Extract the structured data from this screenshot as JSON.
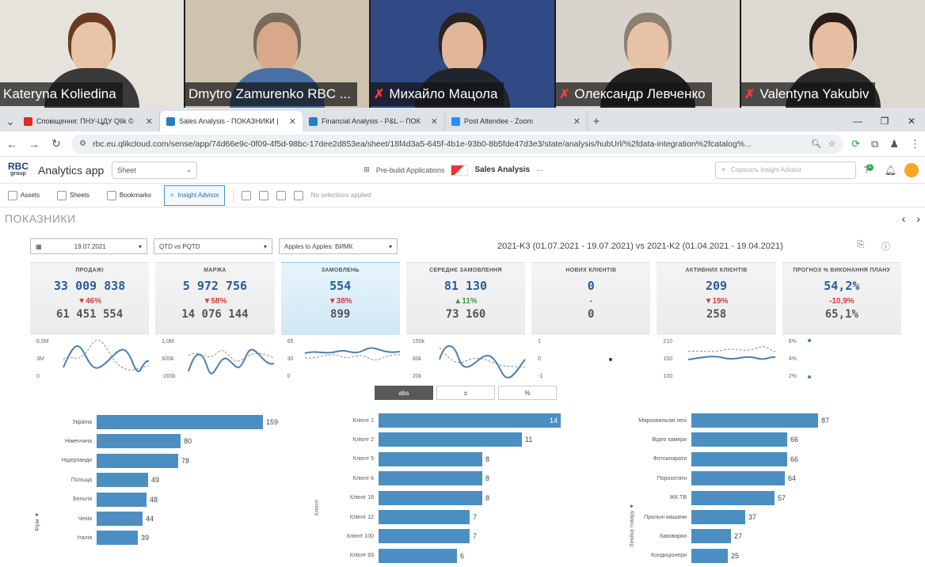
{
  "video": {
    "participants": [
      {
        "name": "Kateryna Koliedina",
        "muted": false,
        "bg": "#e6e2dc",
        "skin": "#e8c4a8",
        "hair": "#6b3a22",
        "shirt": "#3a3a3a"
      },
      {
        "name": "Dmytro Zamurenko RBC ...",
        "muted": false,
        "bg": "#cfc3b0",
        "skin": "#d9a88a",
        "hair": "#7a6a5a",
        "shirt": "#4a6fa5"
      },
      {
        "name": "Михайло Мацола",
        "muted": true,
        "bg": "#2f4a84",
        "skin": "#e2b699",
        "hair": "#2a2420",
        "shirt": "#1e2430"
      },
      {
        "name": "Олександр Левченко",
        "muted": true,
        "bg": "#d8d3cc",
        "skin": "#e8c2a6",
        "hair": "#8c8070",
        "shirt": "#222"
      },
      {
        "name": "Valentyna Yakubiv",
        "muted": true,
        "bg": "#ddd8d0",
        "skin": "#e6bfa3",
        "hair": "#2a1e18",
        "shirt": "#2a2a2a"
      }
    ]
  },
  "browser": {
    "tabs": [
      {
        "title": "Сповіщення: ПНУ-ЦДУ Qlik ©",
        "icon_color": "#d93025",
        "active": false
      },
      {
        "title": "Sales Analysis - ПОКАЗНИКИ |",
        "icon_color": "#2a7fbf",
        "active": true
      },
      {
        "title": "Financial Analysis - P&L – ПОК",
        "icon_color": "#2a7fbf",
        "active": false
      },
      {
        "title": "Post Attendee - Zoom",
        "icon_color": "#2d8cff",
        "active": false
      }
    ],
    "new_tab": "+",
    "url": "rbc.eu.qlikcloud.com/sense/app/74d66e9c-0f09-4f5d-98bc-17dee2d853ea/sheet/18f4d3a5-645f-4b1e-93b0-8b5fde47d3e3/state/analysis/hubUrl/%2fdata-integration%2fcatalog%..."
  },
  "qlik": {
    "logo_top": "RBC",
    "logo_bottom": "group",
    "app_name": "Analytics app",
    "sheet_select": "Sheet",
    "prebuild": "Pre-build Applications",
    "sales": "Sales Analysis",
    "more": "···",
    "insight_placeholder": "Спросить Insight Advisor",
    "notif_count": "1",
    "toolbar": {
      "assets": "Assets",
      "sheets": "Sheets",
      "bookmarks": "Bookmarks",
      "insight": "Insight Advisor",
      "no_selections": "No selections applied"
    },
    "sheet_title": "ПОКАЗНИКИ"
  },
  "filters": {
    "date": "19.07.2021",
    "period": "QTD vs PQTD",
    "apples": "Apples to Apples: ВИМК",
    "period_text": "2021-K3 (01.07.2021 - 19.07.2021) vs 2021-K2 (01.04.2021 - 19.04.2021)"
  },
  "kpis": [
    {
      "label": "ПРОДАЖІ",
      "value": "33 009 838",
      "change": "▼46%",
      "dir": "down",
      "prev": "61 451 554"
    },
    {
      "label": "МАРЖА",
      "value": "5 972 756",
      "change": "▼58%",
      "dir": "down",
      "prev": "14 076 144"
    },
    {
      "label": "ЗАМОВЛЕНЬ",
      "value": "554",
      "change": "▼38%",
      "dir": "down",
      "prev": "899"
    },
    {
      "label": "СЕРЕДНЄ ЗАМОВЛЕННЯ",
      "value": "81 130",
      "change": "▲11%",
      "dir": "up",
      "prev": "73 160"
    },
    {
      "label": "НОВИХ КЛІЄНТІВ",
      "value": "0",
      "change": "-",
      "dir": "neutral",
      "prev": "0"
    },
    {
      "label": "АКТИВНИХ КЛІЄНТІВ",
      "value": "209",
      "change": "▼19%",
      "dir": "down",
      "prev": "258"
    },
    {
      "label": "ПРОГНОЗ % ВИКОНАННЯ ПЛАНУ",
      "value": "54,2%",
      "change": "-10,9%",
      "dir": "down",
      "prev": "65,1%"
    }
  ],
  "sparks": [
    {
      "ticks": [
        "6,5M",
        "3M",
        "0"
      ]
    },
    {
      "ticks": [
        "1,0M",
        "600k",
        "-200k"
      ]
    },
    {
      "ticks": [
        "65",
        "30",
        "0"
      ]
    },
    {
      "ticks": [
        "150k",
        "80k",
        "20k"
      ]
    },
    {
      "ticks": [
        "1",
        "0",
        "-1"
      ]
    },
    {
      "ticks": [
        "210",
        "150",
        "100"
      ]
    },
    {
      "ticks": [
        "6%",
        "4%",
        "2%"
      ]
    }
  ],
  "toggle": [
    "abs",
    "±",
    "%"
  ],
  "chart_data": [
    {
      "type": "bar",
      "ylabel": "Фірм ▼",
      "categories": [
        "Україна",
        "Німеччина",
        "Нідерланди",
        "Польща",
        "Бельгія",
        "Чехія",
        "Італія"
      ],
      "values": [
        159,
        80,
        78,
        49,
        48,
        44,
        39
      ]
    },
    {
      "type": "bar",
      "ylabel": "Клієнт",
      "categories": [
        "Клієнт 1",
        "Клієнт 2",
        "Клієнт 5",
        "Клієнт 6",
        "Клієнт 16",
        "Клієнт 12",
        "Клієнт 100",
        "Клієнт 93"
      ],
      "values": [
        14,
        11,
        8,
        8,
        8,
        7,
        7,
        6
      ]
    },
    {
      "type": "bar",
      "ylabel": "Лінійка товару ▼",
      "categories": [
        "Мікрохвильові печі",
        "Відео камери",
        "Фотоапарати",
        "Порохотяги",
        "ЖК ТВ",
        "Пральні машини",
        "Кавоварки",
        "Кондиціонери"
      ],
      "values": [
        87,
        66,
        66,
        64,
        57,
        37,
        27,
        25
      ]
    }
  ]
}
